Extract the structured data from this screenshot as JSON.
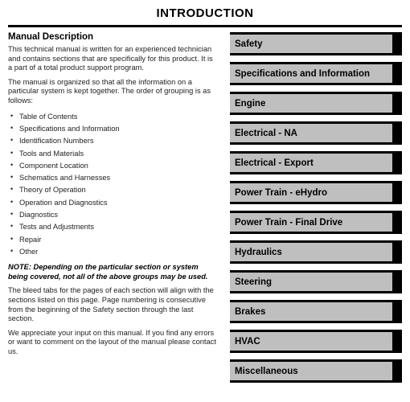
{
  "title": "INTRODUCTION",
  "left": {
    "heading": "Manual Description",
    "para1": "This technical manual is written for an experienced technician and contains sections that are specifically for this product. It is a part of a total product support program.",
    "para2": "The manual is organized so that all the information on a particular system is kept together. The order of grouping is as follows:",
    "toc": [
      "Table of Contents",
      "Specifications and Information",
      "Identification Numbers",
      "Tools and Materials",
      "Component Location",
      "Schematics and Harnesses",
      "Theory of Operation",
      "Operation and Diagnostics",
      "Diagnostics",
      "Tests and Adjustments",
      "Repair",
      "Other"
    ],
    "note": "NOTE: Depending on the particular section or system being covered, not all of the above groups may be used.",
    "para3": "The bleed tabs for the pages of each section will align with the sections listed on this page. Page numbering is consecutive from the beginning of the Safety section through the last section.",
    "para4": "We appreciate your input on this manual. If you find any errors or want to comment on the layout of the manual please contact us."
  },
  "right": {
    "tabs": [
      "Safety",
      "Specifications and Information",
      "Engine",
      "Electrical - NA",
      "Electrical - Export",
      "Power Train - eHydro",
      "Power Train - Final Drive",
      "Hydraulics",
      "Steering",
      "Brakes",
      "HVAC",
      "Miscellaneous"
    ],
    "tab_bg": "#bfbfbf",
    "tab_border": "#000000"
  }
}
